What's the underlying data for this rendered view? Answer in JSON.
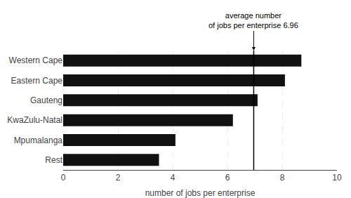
{
  "chart_data": {
    "type": "bar",
    "orientation": "horizontal",
    "categories": [
      "Western Cape",
      "Eastern Cape",
      "Gauteng",
      "KwaZulu-Natal",
      "Mpumalanga",
      "Rest"
    ],
    "values": [
      8.7,
      8.1,
      7.1,
      6.2,
      4.1,
      3.5
    ],
    "color": "#111111",
    "xlabel": "number of jobs per enterprise",
    "xlim": [
      0,
      10
    ],
    "xticks": [
      0,
      2,
      4,
      6,
      8,
      10
    ],
    "grid": true,
    "annotations": [
      {
        "x": 6.96,
        "text": "average number\nof jobs per enterprise 6.96"
      }
    ]
  }
}
